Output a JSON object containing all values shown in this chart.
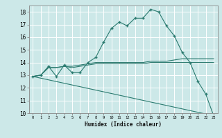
{
  "background_color": "#cce8e8",
  "grid_color": "#ffffff",
  "line_color": "#2a7a6f",
  "xlabel": "Humidex (Indice chaleur)",
  "xlim": [
    -0.5,
    23.5
  ],
  "ylim": [
    10,
    18.5
  ],
  "yticks": [
    10,
    11,
    12,
    13,
    14,
    15,
    16,
    17,
    18
  ],
  "xticks": [
    0,
    1,
    2,
    3,
    4,
    5,
    6,
    7,
    8,
    9,
    10,
    11,
    12,
    13,
    14,
    15,
    16,
    17,
    18,
    19,
    20,
    21,
    22,
    23
  ],
  "series": [
    {
      "x": [
        0,
        1,
        2,
        3,
        4,
        5,
        6,
        7,
        8,
        9,
        10,
        11,
        12,
        13,
        14,
        15,
        16,
        17,
        18,
        19,
        20,
        21,
        22,
        23
      ],
      "y": [
        12.9,
        13.0,
        13.7,
        12.9,
        13.8,
        13.2,
        13.2,
        14.0,
        14.4,
        15.6,
        16.7,
        17.2,
        16.9,
        17.5,
        17.5,
        18.2,
        18.0,
        16.9,
        16.1,
        14.8,
        14.0,
        12.5,
        11.5,
        9.8
      ],
      "has_markers": true
    },
    {
      "x": [
        0,
        1,
        2,
        3,
        4,
        5,
        6,
        7,
        8,
        9,
        10,
        11,
        12,
        13,
        14,
        15,
        16,
        17,
        18,
        19,
        20,
        21,
        22,
        23
      ],
      "y": [
        12.9,
        13.0,
        13.6,
        13.6,
        13.7,
        13.7,
        13.8,
        13.9,
        14.0,
        14.0,
        14.0,
        14.0,
        14.0,
        14.0,
        14.0,
        14.1,
        14.1,
        14.1,
        14.2,
        14.3,
        14.3,
        14.3,
        14.3,
        14.3
      ],
      "has_markers": false
    },
    {
      "x": [
        0,
        1,
        2,
        3,
        4,
        5,
        6,
        7,
        8,
        9,
        10,
        11,
        12,
        13,
        14,
        15,
        16,
        17,
        18,
        19,
        20,
        21,
        22,
        23
      ],
      "y": [
        12.9,
        13.0,
        13.6,
        13.6,
        13.7,
        13.6,
        13.7,
        13.8,
        13.9,
        13.9,
        13.9,
        13.9,
        13.9,
        13.9,
        13.9,
        14.0,
        14.0,
        14.0,
        14.0,
        14.0,
        14.0,
        14.0,
        14.0,
        14.0
      ],
      "has_markers": false
    },
    {
      "x": [
        0,
        23
      ],
      "y": [
        12.9,
        9.8
      ],
      "has_markers": false
    }
  ]
}
